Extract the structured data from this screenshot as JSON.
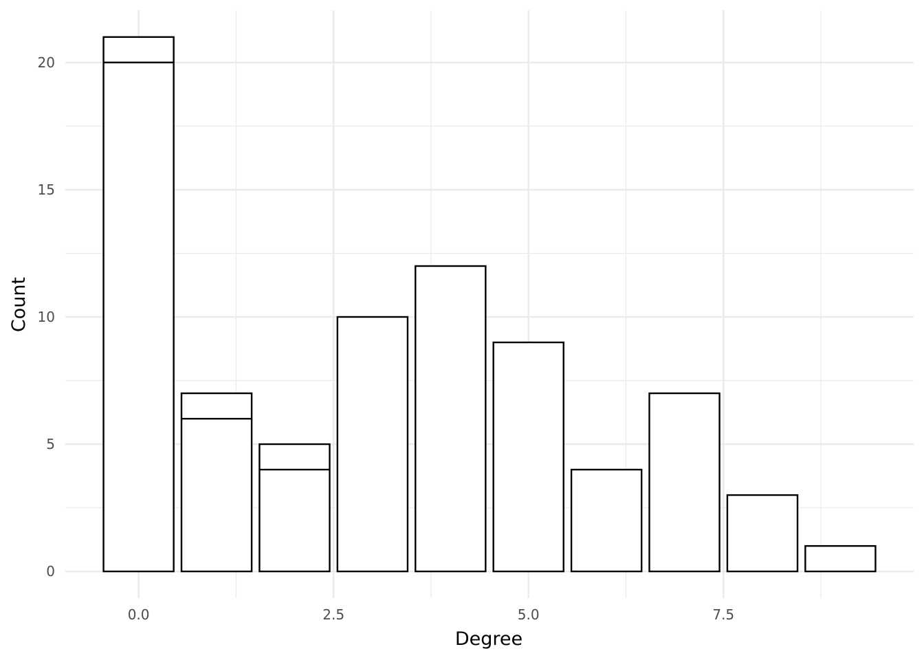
{
  "chart_data": {
    "type": "bar",
    "title": "",
    "xlabel": "Degree",
    "ylabel": "Count",
    "x_ticks": [
      "0.0",
      "2.5",
      "5.0",
      "7.5"
    ],
    "y_ticks": [
      "0",
      "5",
      "10",
      "15",
      "20"
    ],
    "xlim": [
      -0.94,
      9.94
    ],
    "ylim": [
      -1.05,
      22.05
    ],
    "grid": true,
    "legend": "none",
    "bar_fill": "#ffffff",
    "bar_outline": "#000000",
    "grid_color": "#ebebeb",
    "series": [
      {
        "x": [
          0,
          1,
          2,
          3,
          4,
          5,
          6,
          7,
          8,
          9
        ],
        "values": [
          21,
          7,
          5,
          10,
          12,
          9,
          4,
          7,
          3,
          1
        ],
        "stack_breaks": [
          [
            20
          ],
          [
            6
          ],
          [
            4
          ],
          [],
          [],
          [],
          [],
          [],
          [],
          []
        ]
      }
    ]
  }
}
